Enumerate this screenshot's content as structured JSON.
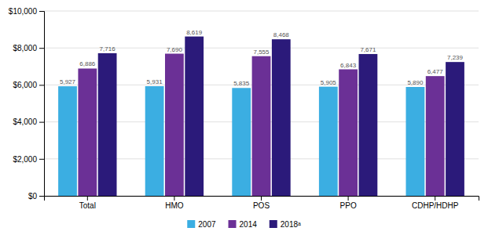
{
  "chart_data": {
    "type": "bar",
    "categories": [
      "Total",
      "HMO",
      "POS",
      "PPO",
      "CDHP/HDHP"
    ],
    "series": [
      {
        "name": "2007",
        "color": "#3BAEE2",
        "values": [
          5927,
          5931,
          5835,
          5905,
          5890
        ],
        "value_labels": [
          "5,927",
          "5,931",
          "5,835",
          "5,905",
          "5,890"
        ]
      },
      {
        "name": "2014",
        "color": "#6B3096",
        "values": [
          6886,
          7690,
          7555,
          6843,
          6477
        ],
        "value_labels": [
          "6,886",
          "7,690",
          "7,555",
          "6,843",
          "6,477"
        ]
      },
      {
        "name": "2018ᵃ",
        "color": "#2B1A7A",
        "values": [
          7716,
          8619,
          8468,
          7671,
          7239
        ],
        "value_labels": [
          "7,716",
          "8,619",
          "8,468",
          "7,671",
          "7,239"
        ]
      }
    ],
    "ylim": [
      0,
      10000
    ],
    "yticks": [
      {
        "value": 0,
        "label": "$0"
      },
      {
        "value": 2000,
        "label": "$2,000"
      },
      {
        "value": 4000,
        "label": "$4,000"
      },
      {
        "value": 6000,
        "label": "$6,000"
      },
      {
        "value": 8000,
        "label": "$8,000"
      },
      {
        "value": 10000,
        "label": "$10,000"
      }
    ],
    "grid": true,
    "data_labels": true,
    "legend": "bottom"
  }
}
